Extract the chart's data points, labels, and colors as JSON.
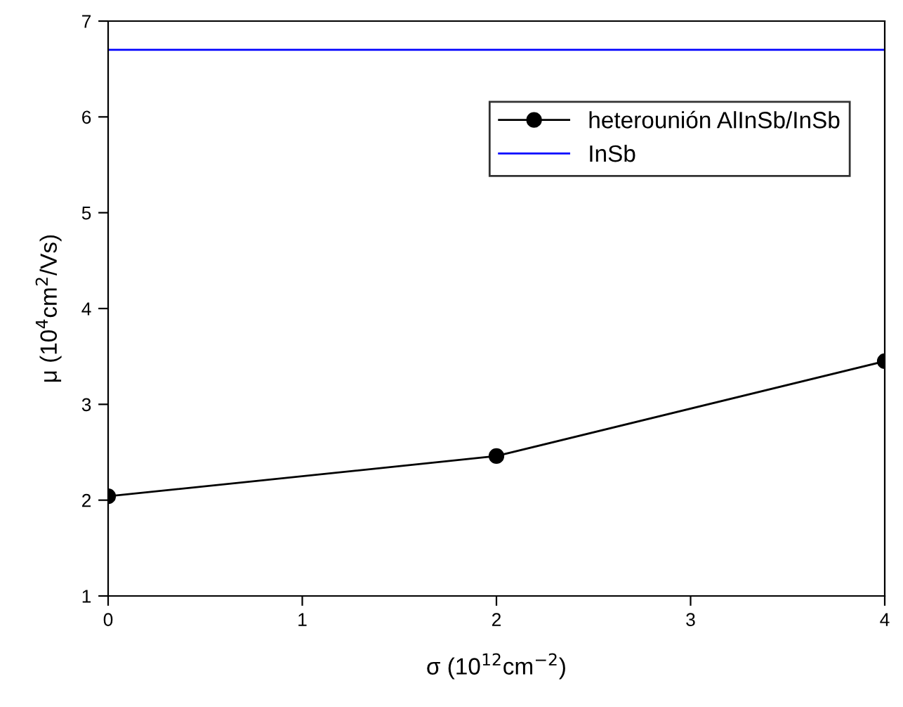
{
  "chart_data": {
    "type": "line",
    "xlabel": "σ (10$^{12}$cm$^{−2}$)",
    "ylabel": "μ (10$^{4}$cm$^{2}$/Vs)",
    "xlim": [
      0,
      4
    ],
    "ylim": [
      1,
      7
    ],
    "xticks": [
      0,
      1,
      2,
      3,
      4
    ],
    "yticks": [
      1,
      2,
      3,
      4,
      5,
      6,
      7
    ],
    "grid": false,
    "legend": "top right",
    "series": [
      {
        "name": "heterounión AlInSb/InSb",
        "color": "#000000",
        "x": [
          0,
          2,
          4
        ],
        "values": [
          2.04,
          2.46,
          3.45
        ],
        "marker": "circle"
      },
      {
        "name": "InSb",
        "color": "#0000ff",
        "x": [
          0,
          4
        ],
        "values": [
          6.7,
          6.7
        ],
        "marker": "none"
      }
    ]
  }
}
